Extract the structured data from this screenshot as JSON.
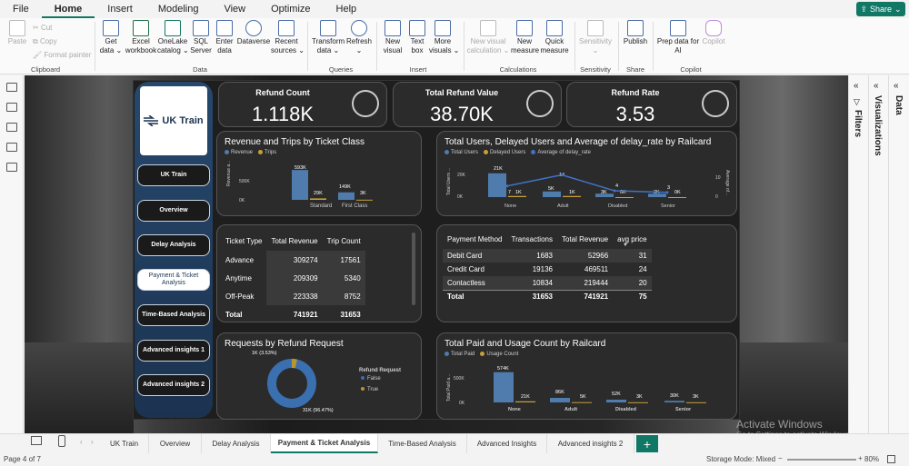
{
  "menu": {
    "items": [
      "File",
      "Home",
      "Insert",
      "Modeling",
      "View",
      "Optimize",
      "Help"
    ],
    "active": "Home",
    "share": "Share"
  },
  "ribbon": {
    "clipboard": {
      "paste": "Paste",
      "cut": "Cut",
      "copy": "Copy",
      "format_painter": "Format painter",
      "group": "Clipboard"
    },
    "data": {
      "get_data": "Get\ndata ⌄",
      "excel": "Excel\nworkbook",
      "onelake": "OneLake\ncatalog ⌄",
      "sql": "SQL\nServer",
      "enter": "Enter\ndata",
      "dataverse": "Dataverse",
      "recent": "Recent\nsources ⌄",
      "group": "Data"
    },
    "queries": {
      "transform": "Transform\ndata ⌄",
      "refresh": "Refresh\n⌄",
      "group": "Queries"
    },
    "insert": {
      "visual": "New\nvisual",
      "textbox": "Text\nbox",
      "more": "More\nvisuals ⌄",
      "group": "Insert"
    },
    "calculations": {
      "new_calc": "New visual\ncalculation ⌄",
      "new_measure": "New\nmeasure",
      "quick": "Quick\nmeasure",
      "group": "Calculations"
    },
    "sensitivity": {
      "label": "Sensitivity\n⌄",
      "group": "Sensitivity"
    },
    "share": {
      "publish": "Publish",
      "group": "Share"
    },
    "copilot": {
      "prep": "Prep data for\nAI",
      "copilot": "Copilot",
      "group": "Copilot"
    }
  },
  "nav": {
    "logo_text": "UK Train",
    "buttons": [
      "UK Train",
      "Overview",
      "Delay Analysis",
      "Payment & Ticket Analysis",
      "Time-Based Analysis",
      "Advanced insights 1",
      "Advanced insights 2"
    ]
  },
  "kpis": [
    {
      "title": "Refund Count",
      "value": "1.118K"
    },
    {
      "title": "Total Refund Value",
      "value": "38.70K"
    },
    {
      "title": "Refund Rate",
      "value": "3.53"
    }
  ],
  "visuals": {
    "revenue_trips": {
      "title": "Revenue and Trips by Ticket Class",
      "legend": [
        "Revenue",
        "Trips"
      ],
      "ylabel": "Revenue a...",
      "yticks": [
        "500K",
        "0K"
      ],
      "labels": {
        "std_rev": "593K",
        "std_trips": "29K",
        "fc_rev": "149K",
        "fc_trips": "3K"
      }
    },
    "users_delay": {
      "title": "Total Users, Delayed Users and Average of delay_rate by Railcard",
      "legend": [
        "Total Users",
        "Delayed Users",
        "Average of delay_rate"
      ],
      "ylabel": "Total Users ...",
      "yticks": [
        "20K",
        "0K"
      ],
      "y2label": "Average of...",
      "y2ticks": [
        "10",
        "0"
      ],
      "labels": {
        "none_total": "21K",
        "none_delayed": "1K",
        "none_avg": "7",
        "adult_total": "5K",
        "adult_delayed": "1K",
        "adult_avg": "14",
        "dis_total": "3K",
        "dis_delayed": "0K",
        "dis_avg": "4",
        "sen_total": "3K",
        "sen_delayed": "0K",
        "sen_avg": "3"
      }
    },
    "ticket_table": {
      "headers": [
        "Ticket Type",
        "Total Revenue",
        "Trip Count"
      ],
      "rows": [
        [
          "Advance",
          "309274",
          "17561"
        ],
        [
          "Anytime",
          "209309",
          "5340"
        ],
        [
          "Off-Peak",
          "223338",
          "8752"
        ]
      ],
      "total": [
        "Total",
        "741921",
        "31653"
      ]
    },
    "payment_table": {
      "headers": [
        "Payment Method",
        "Transactions",
        "Total Revenue",
        "avg price"
      ],
      "rows": [
        [
          "Debit Card",
          "1683",
          "52966",
          "31"
        ],
        [
          "Credit Card",
          "19136",
          "469511",
          "24"
        ],
        [
          "Contactless",
          "10834",
          "219444",
          "20"
        ]
      ],
      "total": [
        "Total",
        "31653",
        "741921",
        "75"
      ]
    },
    "refund_request": {
      "title": "Requests by Refund Request",
      "legend_title": "Refund Request",
      "legend": [
        "False",
        "True"
      ],
      "labels": {
        "true": "1K (3.53%)",
        "false": "31K (96.47%)"
      }
    },
    "paid_usage": {
      "title": "Total Paid and Usage Count by Railcard",
      "legend": [
        "Total Paid",
        "Usage Count"
      ],
      "ylabel": "Total Paid a...",
      "yticks": [
        "500K",
        "0K"
      ],
      "labels": {
        "none_paid": "574K",
        "none_usage": "21K",
        "adult_paid": "86K",
        "adult_usage": "5K",
        "dis_paid": "52K",
        "dis_usage": "3K",
        "sen_paid": "30K",
        "sen_usage": "3K"
      }
    }
  },
  "chart_data": [
    {
      "type": "bar",
      "title": "Revenue and Trips by Ticket Class",
      "categories": [
        "Standard",
        "First Class"
      ],
      "series": [
        {
          "name": "Revenue",
          "values": [
            593000,
            149000
          ]
        },
        {
          "name": "Trips",
          "values": [
            29000,
            3000
          ]
        }
      ],
      "ylabel": "Revenue a...",
      "colors": [
        "#4f7cac",
        "#c7a03a"
      ]
    },
    {
      "type": "bar",
      "title": "Total Users, Delayed Users and Average of delay_rate by Railcard",
      "categories": [
        "None",
        "Adult",
        "Disabled",
        "Senior"
      ],
      "series": [
        {
          "name": "Total Users",
          "values": [
            21000,
            5000,
            3000,
            3000
          ]
        },
        {
          "name": "Delayed Users",
          "values": [
            1000,
            1000,
            0,
            0
          ]
        },
        {
          "name": "Average of delay_rate",
          "values": [
            7,
            14,
            4,
            3
          ]
        }
      ],
      "colors": [
        "#4f7cac",
        "#c7a03a",
        "#3f73c8"
      ]
    },
    {
      "type": "pie",
      "title": "Requests by Refund Request",
      "categories": [
        "True",
        "False"
      ],
      "values": [
        1000,
        31000
      ],
      "percent": [
        3.53,
        96.47
      ],
      "colors": [
        "#b8962e",
        "#3a6fb0"
      ]
    },
    {
      "type": "bar",
      "title": "Total Paid and Usage Count by Railcard",
      "categories": [
        "None",
        "Adult",
        "Disabled",
        "Senior"
      ],
      "series": [
        {
          "name": "Total Paid",
          "values": [
            574000,
            86000,
            52000,
            30000
          ]
        },
        {
          "name": "Usage Count",
          "values": [
            21000,
            5000,
            3000,
            3000
          ]
        }
      ],
      "ylabel": "Total Paid a...",
      "colors": [
        "#4f7cac",
        "#c7a03a"
      ]
    }
  ],
  "side_panels": {
    "filters": "Filters",
    "visualizations": "Visualizations",
    "data": "Data"
  },
  "tabs": [
    "UK Train",
    "Overview",
    "Delay Analysis",
    "Payment & Ticket Analysis",
    "Time-Based Analysis",
    "Advanced Insights",
    "Advanced insights 2"
  ],
  "status": {
    "page": "Page 4 of 7",
    "storage": "Storage Mode: Mixed",
    "zoom": "80%"
  },
  "watermark": {
    "line1": "Activate Windows",
    "line2": "Go to Settings to activate Windows."
  }
}
